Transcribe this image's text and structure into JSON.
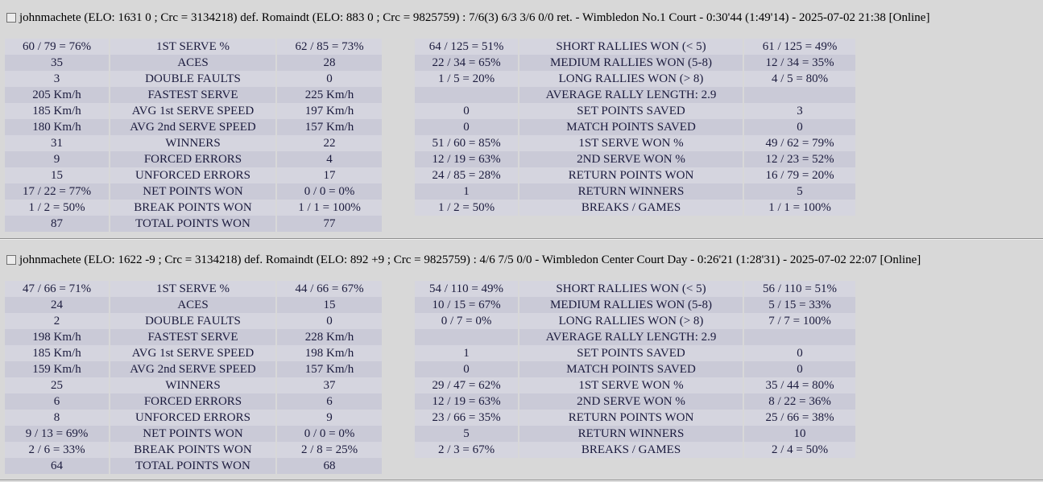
{
  "colors": {
    "page_background": "#d8d8d8",
    "row_light": "#d5d5df",
    "row_dark": "#cacad7",
    "table_text": "#1b1b3d",
    "header_text": "#000000",
    "divider": "#8f8f8f"
  },
  "matches": [
    {
      "header": "johnmachete (ELO: 1631 0 ; Crc = 3134218) def. Romaindt (ELO: 883 0 ; Crc = 9825759) : 7/6(3) 6/3 3/6 0/0 ret. - Wimbledon No.1 Court - 0:30'44 (1:49'14) - 2025-07-02 21:38 [Online]",
      "serve_stats": [
        {
          "p1": "60 / 79 = 76%",
          "label": "1ST SERVE %",
          "p2": "62 / 85 = 73%"
        },
        {
          "p1": "35",
          "label": "ACES",
          "p2": "28"
        },
        {
          "p1": "3",
          "label": "DOUBLE FAULTS",
          "p2": "0"
        },
        {
          "p1": "205 Km/h",
          "label": "FASTEST SERVE",
          "p2": "225 Km/h"
        },
        {
          "p1": "185 Km/h",
          "label": "AVG 1st SERVE SPEED",
          "p2": "197 Km/h"
        },
        {
          "p1": "180 Km/h",
          "label": "AVG 2nd SERVE SPEED",
          "p2": "157 Km/h"
        },
        {
          "p1": "31",
          "label": "WINNERS",
          "p2": "22"
        },
        {
          "p1": "9",
          "label": "FORCED ERRORS",
          "p2": "4"
        },
        {
          "p1": "15",
          "label": "UNFORCED ERRORS",
          "p2": "17"
        },
        {
          "p1": "17 / 22 = 77%",
          "label": "NET POINTS WON",
          "p2": "0 / 0 = 0%"
        },
        {
          "p1": "1 / 2 = 50%",
          "label": "BREAK POINTS WON",
          "p2": "1 / 1 = 100%"
        },
        {
          "p1": "87",
          "label": "TOTAL POINTS WON",
          "p2": "77"
        }
      ],
      "rally_stats": [
        {
          "p1": "64 / 125 = 51%",
          "label": "SHORT RALLIES WON (< 5)",
          "p2": "61 / 125 = 49%"
        },
        {
          "p1": "22 / 34 = 65%",
          "label": "MEDIUM RALLIES WON (5-8)",
          "p2": "12 / 34 = 35%"
        },
        {
          "p1": "1 / 5 = 20%",
          "label": "LONG RALLIES WON (> 8)",
          "p2": "4 / 5 = 80%"
        },
        {
          "p1": "",
          "label": "AVERAGE RALLY LENGTH: 2.9",
          "p2": ""
        },
        {
          "p1": "0",
          "label": "SET POINTS SAVED",
          "p2": "3"
        },
        {
          "p1": "0",
          "label": "MATCH POINTS SAVED",
          "p2": "0"
        },
        {
          "p1": "51 / 60 = 85%",
          "label": "1ST SERVE WON %",
          "p2": "49 / 62 = 79%"
        },
        {
          "p1": "12 / 19 = 63%",
          "label": "2ND SERVE WON %",
          "p2": "12 / 23 = 52%"
        },
        {
          "p1": "24 / 85 = 28%",
          "label": "RETURN POINTS WON",
          "p2": "16 / 79 = 20%"
        },
        {
          "p1": "1",
          "label": "RETURN WINNERS",
          "p2": "5"
        },
        {
          "p1": "1 / 2 = 50%",
          "label": "BREAKS / GAMES",
          "p2": "1 / 1 = 100%"
        }
      ]
    },
    {
      "header": "johnmachete (ELO: 1622 -9 ; Crc = 3134218) def. Romaindt (ELO: 892 +9 ; Crc = 9825759) : 4/6 7/5 0/0 - Wimbledon Center Court Day - 0:26'21 (1:28'31) - 2025-07-02 22:07 [Online]",
      "serve_stats": [
        {
          "p1": "47 / 66 = 71%",
          "label": "1ST SERVE %",
          "p2": "44 / 66 = 67%"
        },
        {
          "p1": "24",
          "label": "ACES",
          "p2": "15"
        },
        {
          "p1": "2",
          "label": "DOUBLE FAULTS",
          "p2": "0"
        },
        {
          "p1": "198 Km/h",
          "label": "FASTEST SERVE",
          "p2": "228 Km/h"
        },
        {
          "p1": "185 Km/h",
          "label": "AVG 1st SERVE SPEED",
          "p2": "198 Km/h"
        },
        {
          "p1": "159 Km/h",
          "label": "AVG 2nd SERVE SPEED",
          "p2": "157 Km/h"
        },
        {
          "p1": "25",
          "label": "WINNERS",
          "p2": "37"
        },
        {
          "p1": "6",
          "label": "FORCED ERRORS",
          "p2": "6"
        },
        {
          "p1": "8",
          "label": "UNFORCED ERRORS",
          "p2": "9"
        },
        {
          "p1": "9 / 13 = 69%",
          "label": "NET POINTS WON",
          "p2": "0 / 0 = 0%"
        },
        {
          "p1": "2 / 6 = 33%",
          "label": "BREAK POINTS WON",
          "p2": "2 / 8 = 25%"
        },
        {
          "p1": "64",
          "label": "TOTAL POINTS WON",
          "p2": "68"
        }
      ],
      "rally_stats": [
        {
          "p1": "54 / 110 = 49%",
          "label": "SHORT RALLIES WON (< 5)",
          "p2": "56 / 110 = 51%"
        },
        {
          "p1": "10 / 15 = 67%",
          "label": "MEDIUM RALLIES WON (5-8)",
          "p2": "5 / 15 = 33%"
        },
        {
          "p1": "0 / 7 = 0%",
          "label": "LONG RALLIES WON (> 8)",
          "p2": "7 / 7 = 100%"
        },
        {
          "p1": "",
          "label": "AVERAGE RALLY LENGTH: 2.9",
          "p2": ""
        },
        {
          "p1": "1",
          "label": "SET POINTS SAVED",
          "p2": "0"
        },
        {
          "p1": "0",
          "label": "MATCH POINTS SAVED",
          "p2": "0"
        },
        {
          "p1": "29 / 47 = 62%",
          "label": "1ST SERVE WON %",
          "p2": "35 / 44 = 80%"
        },
        {
          "p1": "12 / 19 = 63%",
          "label": "2ND SERVE WON %",
          "p2": "8 / 22 = 36%"
        },
        {
          "p1": "23 / 66 = 35%",
          "label": "RETURN POINTS WON",
          "p2": "25 / 66 = 38%"
        },
        {
          "p1": "5",
          "label": "RETURN WINNERS",
          "p2": "10"
        },
        {
          "p1": "2 / 3 = 67%",
          "label": "BREAKS / GAMES",
          "p2": "2 / 4 = 50%"
        }
      ]
    }
  ]
}
